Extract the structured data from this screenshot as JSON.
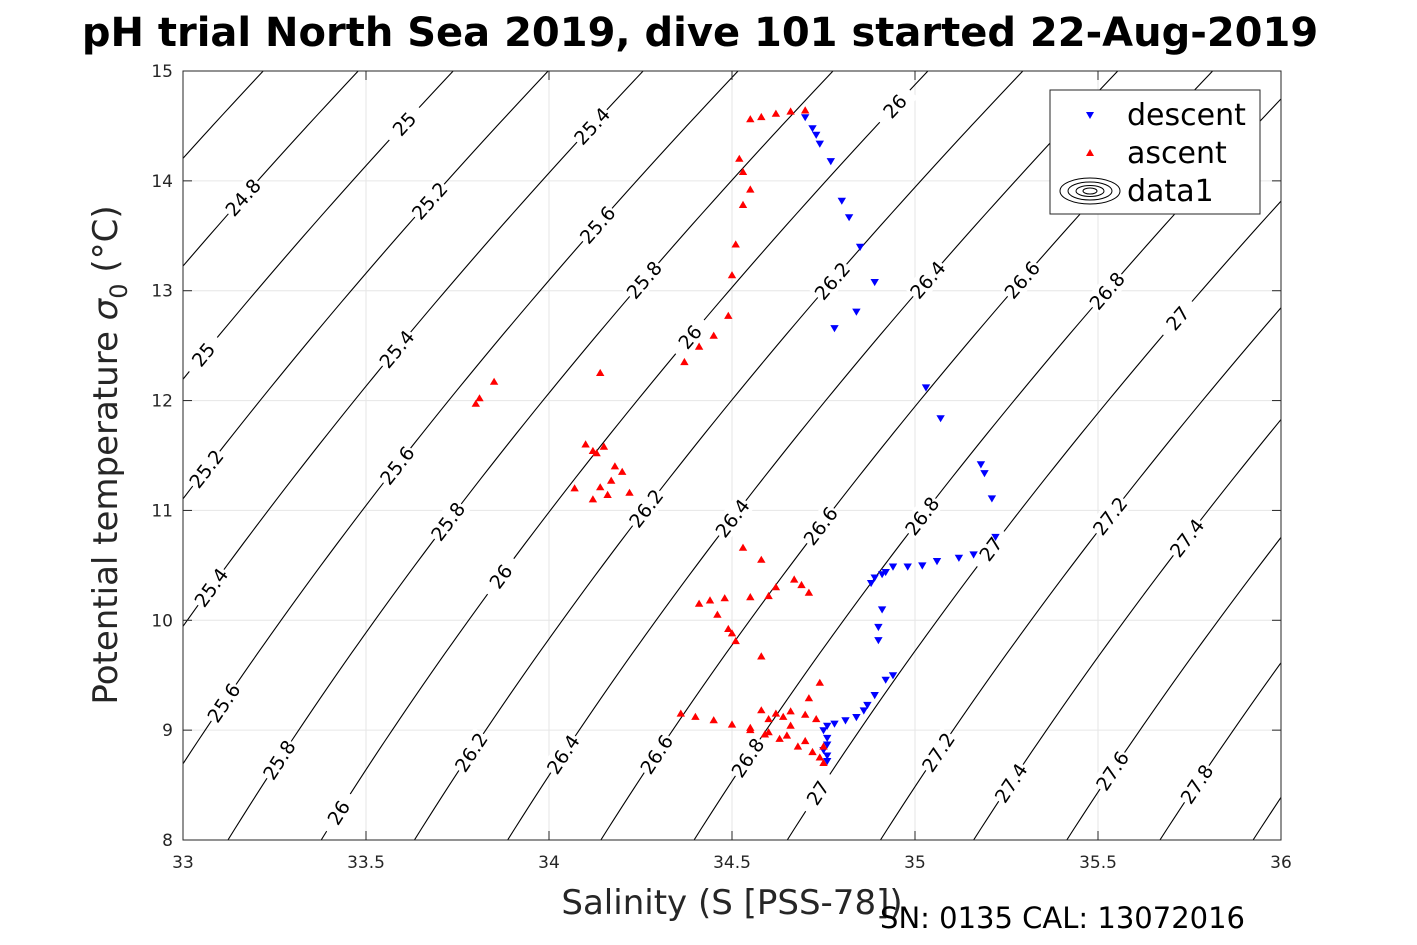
{
  "chart_data": {
    "type": "scatter",
    "title": "pH trial North Sea 2019, dive 101 started 22-Aug-2019",
    "xlabel": "Salinity (S [PSS-78])",
    "ylabel_main": "Potential temperature ",
    "ylabel_symbol": "σ",
    "ylabel_sub": "0",
    "ylabel_unit": " (°C)",
    "footer": "SN: 0135  CAL: 13072016",
    "xlim": [
      33,
      36
    ],
    "ylim": [
      8,
      15
    ],
    "xticks": [
      33,
      33.5,
      34,
      34.5,
      35,
      35.5,
      36
    ],
    "xtick_labels": [
      "33",
      "33.5",
      "34",
      "34.5",
      "35",
      "35.5",
      "36"
    ],
    "yticks": [
      8,
      9,
      10,
      11,
      12,
      13,
      14,
      15
    ],
    "ytick_labels": [
      "8",
      "9",
      "10",
      "11",
      "12",
      "13",
      "14",
      "15"
    ],
    "grid": true,
    "legend_position": "top-right",
    "legend": [
      {
        "label": "descent",
        "marker": "triangle-down",
        "color": "#0000ff"
      },
      {
        "label": "ascent",
        "marker": "triangle-up",
        "color": "#ff0000"
      },
      {
        "label": "data1",
        "marker": "contour",
        "color": "#000000"
      }
    ],
    "contours": {
      "levels": [
        24.8,
        25,
        25.2,
        25.4,
        25.6,
        25.8,
        26,
        26.2,
        26.4,
        26.6,
        26.8,
        27,
        27.2,
        27.4,
        27.6,
        27.8
      ],
      "labels": [
        {
          "text": "24.8",
          "s": 33.13,
          "t": 13.85
        },
        {
          "text": "25",
          "s": 33.13,
          "t": 12.42
        },
        {
          "text": "25.2",
          "s": 33.14,
          "t": 11.38
        },
        {
          "text": "25.4",
          "s": 33.08,
          "t": 10.3
        },
        {
          "text": "25.6",
          "s": 33.13,
          "t": 9.25
        },
        {
          "text": "25.8",
          "s": 33.27,
          "t": 8.73
        },
        {
          "text": "26",
          "s": 33.43,
          "t": 8.25
        },
        {
          "text": "25",
          "s": 33.6,
          "t": 14.52
        },
        {
          "text": "25.2",
          "s": 33.67,
          "t": 13.82
        },
        {
          "text": "25.4",
          "s": 33.57,
          "t": 12.47
        },
        {
          "text": "25.6",
          "s": 33.62,
          "t": 11.41
        },
        {
          "text": "25.8",
          "s": 33.75,
          "t": 10.9
        },
        {
          "text": "26",
          "s": 33.92,
          "t": 10.4
        },
        {
          "text": "25.4",
          "s": 34.13,
          "t": 14.5
        },
        {
          "text": "25.6",
          "s": 34.14,
          "t": 13.6
        },
        {
          "text": "25.8",
          "s": 34.27,
          "t": 13.1
        },
        {
          "text": "26",
          "s": 34.41,
          "t": 12.58
        },
        {
          "text": "26.2",
          "s": 34.26,
          "t": 11.02
        },
        {
          "text": "26.4",
          "s": 34.54,
          "t": 10.93
        },
        {
          "text": "26.2",
          "s": 33.79,
          "t": 8.8
        },
        {
          "text": "26.4",
          "s": 34.05,
          "t": 8.78
        },
        {
          "text": "26.6",
          "s": 34.29,
          "t": 8.78
        },
        {
          "text": "26.8",
          "s": 34.55,
          "t": 8.75
        },
        {
          "text": "26.6",
          "s": 34.78,
          "t": 10.86
        },
        {
          "text": "26",
          "s": 34.94,
          "t": 14.68
        },
        {
          "text": "26.2",
          "s": 34.82,
          "t": 13.09
        },
        {
          "text": "26.4",
          "s": 35.03,
          "t": 13.1
        },
        {
          "text": "26.6",
          "s": 35.28,
          "t": 13.1
        },
        {
          "text": "26.8",
          "s": 35.55,
          "t": 13.0
        },
        {
          "text": "27",
          "s": 35.79,
          "t": 12.75
        },
        {
          "text": "26.8",
          "s": 35.01,
          "t": 10.95
        },
        {
          "text": "27",
          "s": 35.23,
          "t": 10.65
        },
        {
          "text": "27.2",
          "s": 35.52,
          "t": 10.95
        },
        {
          "text": "27.4",
          "s": 35.74,
          "t": 10.75
        },
        {
          "text": "27",
          "s": 34.74,
          "t": 8.43
        },
        {
          "text": "27.2",
          "s": 35.05,
          "t": 8.8
        },
        {
          "text": "27.4",
          "s": 35.28,
          "t": 8.52
        },
        {
          "text": "27.6",
          "s": 35.56,
          "t": 8.63
        },
        {
          "text": "27.8",
          "s": 35.79,
          "t": 8.51
        }
      ]
    },
    "series": [
      {
        "name": "descent",
        "marker": "triangle-down",
        "color": "#0000ff",
        "x": [
          34.7,
          34.72,
          34.73,
          34.74,
          34.77,
          34.8,
          34.82,
          34.85,
          34.89,
          34.84,
          34.78,
          35.03,
          35.07,
          35.18,
          35.19,
          35.21,
          35.22,
          35.16,
          35.12,
          35.06,
          35.02,
          34.98,
          34.94,
          34.92,
          34.91,
          34.89,
          34.88,
          34.91,
          34.9,
          34.9,
          34.94,
          34.92,
          34.89,
          34.87,
          34.86,
          34.84,
          34.81,
          34.78,
          34.76,
          34.75,
          34.76,
          34.76,
          34.75,
          34.76,
          34.76
        ],
        "y": [
          14.58,
          14.48,
          14.42,
          14.34,
          14.18,
          13.82,
          13.67,
          13.4,
          13.08,
          12.81,
          12.66,
          12.12,
          11.84,
          11.42,
          11.34,
          11.11,
          10.76,
          10.6,
          10.57,
          10.54,
          10.5,
          10.49,
          10.49,
          10.44,
          10.42,
          10.39,
          10.34,
          10.1,
          9.94,
          9.82,
          9.5,
          9.46,
          9.32,
          9.23,
          9.18,
          9.12,
          9.09,
          9.06,
          9.04,
          9.0,
          8.93,
          8.87,
          8.82,
          8.77,
          8.72
        ]
      },
      {
        "name": "ascent",
        "marker": "triangle-up",
        "color": "#ff0000",
        "x": [
          34.7,
          34.66,
          34.62,
          34.58,
          34.55,
          34.52,
          34.53,
          34.55,
          34.53,
          34.51,
          34.5,
          34.49,
          34.45,
          34.41,
          34.37,
          33.85,
          33.81,
          33.8,
          34.14,
          34.1,
          34.12,
          34.15,
          34.13,
          34.18,
          34.2,
          34.17,
          34.22,
          34.14,
          34.12,
          34.07,
          34.16,
          34.53,
          34.58,
          34.62,
          34.67,
          34.69,
          34.71,
          34.6,
          34.55,
          34.48,
          34.44,
          34.41,
          34.46,
          34.49,
          34.5,
          34.51,
          34.58,
          34.74,
          34.71,
          34.36,
          34.4,
          34.45,
          34.5,
          34.55,
          34.6,
          34.65,
          34.7,
          34.75,
          34.58,
          34.62,
          34.66,
          34.64,
          34.6,
          34.7,
          34.73,
          34.66,
          34.55,
          34.59,
          34.63,
          34.68,
          34.72,
          34.74,
          34.75
        ],
        "y": [
          14.64,
          14.63,
          14.61,
          14.58,
          14.56,
          14.2,
          14.08,
          13.92,
          13.78,
          13.42,
          13.14,
          12.77,
          12.59,
          12.49,
          12.35,
          12.17,
          12.02,
          11.97,
          12.25,
          11.6,
          11.54,
          11.58,
          11.52,
          11.4,
          11.35,
          11.27,
          11.16,
          11.21,
          11.1,
          11.2,
          11.14,
          10.66,
          10.55,
          10.3,
          10.37,
          10.32,
          10.25,
          10.22,
          10.21,
          10.2,
          10.18,
          10.15,
          10.05,
          9.92,
          9.88,
          9.81,
          9.67,
          9.43,
          9.29,
          9.15,
          9.12,
          9.09,
          9.05,
          9.02,
          8.98,
          8.95,
          8.9,
          8.85,
          9.18,
          9.15,
          9.17,
          9.12,
          9.1,
          9.14,
          9.1,
          9.04,
          9.0,
          8.96,
          8.92,
          8.85,
          8.8,
          8.75,
          8.7
        ]
      }
    ]
  }
}
